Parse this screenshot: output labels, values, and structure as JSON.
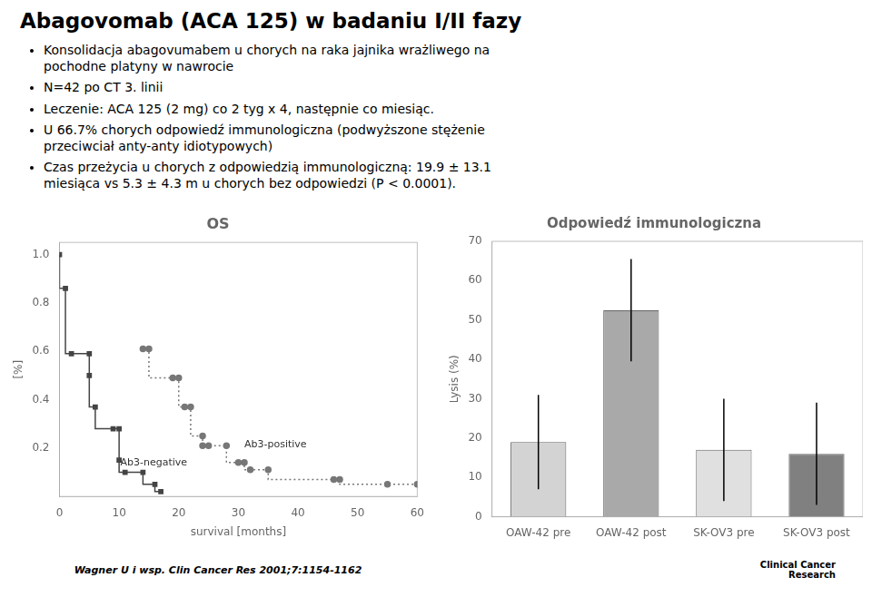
{
  "title": "Abagovomab (ACA 125) w badaniu I/II fazy",
  "bullets": [
    "Konsolidacja abagovumabem u chorych na raka jajnika wrażliwego na\npochodne platyny w nawrocie",
    "N=42 po CT 3. linii",
    "Leczenie: ACA 125 (2 mg) co 2 tyg x 4, następnie co miesiąc.",
    "U 66.7% chorych odpowiedź immunologiczna (podwyższone stężenie\nprzeciwciał anty-anty idiotypowych)",
    "Czas przeżycia u chorych z odpowiedzią immunologiczną: 19.9 ± 13.1\nmiesiąca vs 5.3 ± 4.3 m u chorych bez odpowiedzi  (P < 0.0001)."
  ],
  "annotations": [
    "Wagner U i wsp. Clin Cancer Res 2001;7:1154-1162",
    "Clinical Cancer\nResearch"
  ],
  "chart_data": [
    {
      "type": "step",
      "title": "OS",
      "xlabel": "survival [months]",
      "ylabel": "[%]",
      "xlim": [
        0,
        60
      ],
      "ylim": [
        0,
        1.05
      ],
      "xticks": [
        0,
        10,
        20,
        30,
        40,
        50,
        60
      ],
      "yticks": [
        0.2,
        0.4,
        0.6,
        0.8,
        {
          "value": 1.0,
          "label": "1.0"
        }
      ],
      "grid": false,
      "series": [
        {
          "color": "#444444",
          "line_style": "solid",
          "marker": "square",
          "x": [
            0,
            1,
            2,
            5,
            5,
            6,
            9,
            10,
            10,
            11,
            14,
            16,
            17
          ],
          "values": [
            1.0,
            0.86,
            0.59,
            0.59,
            0.5,
            0.37,
            0.28,
            0.28,
            0.15,
            0.1,
            0.1,
            0.05,
            0.02
          ]
        },
        {
          "color": "#777777",
          "line_style": "dotted",
          "marker": "circle",
          "x": [
            14,
            15,
            19,
            20,
            21,
            22,
            24,
            24,
            25,
            28,
            30,
            31,
            32,
            35,
            46,
            47,
            55,
            60
          ],
          "values": [
            0.61,
            0.61,
            0.49,
            0.49,
            0.37,
            0.37,
            0.25,
            0.21,
            0.21,
            0.21,
            0.14,
            0.14,
            0.11,
            0.11,
            0.07,
            0.07,
            0.05,
            0.05
          ]
        }
      ],
      "annotations": [
        {
          "text": "Ab3-negative",
          "x": 10.2,
          "y": 0.12
        },
        {
          "text": "Ab3-positive",
          "x": 31.0,
          "y": 0.195
        }
      ]
    },
    {
      "type": "bar",
      "title": "Odpowiedź immunologiczna",
      "ylabel": "Lysis (%)",
      "categories": [
        "OAW-42 pre",
        "OAW-42 post",
        "SK-OV3 pre",
        "SK-OV3 post"
      ],
      "values": [
        19.0,
        52.5,
        17.0,
        16.0
      ],
      "errors": [
        12.0,
        13.0,
        13.0,
        13.0
      ],
      "colors": [
        "#d3d3d3",
        "#a9a9a9",
        "#e0e0e0",
        "#808080"
      ],
      "ylim": [
        0,
        70
      ],
      "yticks": [
        0,
        10,
        20,
        30,
        40,
        50,
        60,
        70
      ],
      "grid": false
    }
  ]
}
